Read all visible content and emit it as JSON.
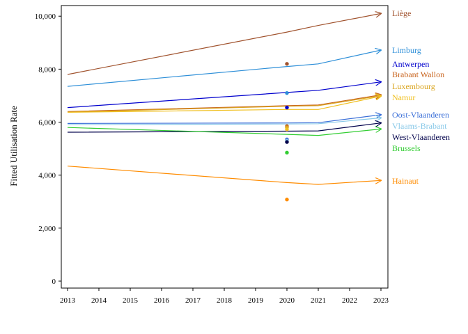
{
  "chart_data": {
    "type": "line",
    "title": "",
    "xlabel": "",
    "ylabel": "Fitted Utilisation Rate",
    "xlim": [
      2013,
      2023
    ],
    "ylim": [
      0,
      10400
    ],
    "x_ticks": [
      "2013",
      "2014",
      "2015",
      "2016",
      "2017",
      "2018",
      "2019",
      "2020",
      "2021",
      "2022",
      "2023"
    ],
    "y_ticks": [
      {
        "value": 0,
        "label": "0"
      },
      {
        "value": 2000,
        "label": "2,000"
      },
      {
        "value": 4000,
        "label": "4,000"
      },
      {
        "value": 6000,
        "label": "6,000"
      },
      {
        "value": 8000,
        "label": "8,000"
      },
      {
        "value": 10000,
        "label": "10,000"
      }
    ],
    "grid": false,
    "legend": "right, end-of-line labels",
    "x": [
      2013,
      2020,
      2021,
      2023
    ],
    "series": [
      {
        "name": "Liège",
        "color": "#a0522d",
        "values": [
          7800,
          9400,
          9650,
          10100
        ],
        "observed_2020": 8200
      },
      {
        "name": "Limburg",
        "color": "#2e8fd8",
        "values": [
          7350,
          8100,
          8200,
          8720
        ],
        "observed_2020": 7100
      },
      {
        "name": "Antwerpen",
        "color": "#0000cd",
        "values": [
          6550,
          7120,
          7200,
          7520
        ],
        "observed_2020": 6550
      },
      {
        "name": "Brabant Wallon",
        "color": "#c8641e",
        "values": [
          6400,
          6620,
          6650,
          7030
        ],
        "observed_2020": 5850
      },
      {
        "name": "Luxembourg",
        "color": "#daa520",
        "values": [
          6380,
          6600,
          6620,
          7000
        ],
        "observed_2020": 5800
      },
      {
        "name": "Namur",
        "color": "#f0c020",
        "values": [
          6370,
          6480,
          6480,
          6980
        ],
        "observed_2020": 5730
      },
      {
        "name": "Oost-Vlaanderen",
        "color": "#3a6fd8",
        "values": [
          5950,
          5970,
          5980,
          6280
        ],
        "observed_2020": 5350
      },
      {
        "name": "Vlaams-Brabant",
        "color": "#87c8e8",
        "values": [
          5900,
          5930,
          5940,
          6160
        ],
        "observed_2020": 5300
      },
      {
        "name": "West-Vlaanderen",
        "color": "#00004a",
        "values": [
          5620,
          5660,
          5670,
          5970
        ],
        "observed_2020": 5250
      },
      {
        "name": "Brussels",
        "color": "#32cd32",
        "values": [
          5800,
          5540,
          5500,
          5740
        ],
        "observed_2020": 4850
      },
      {
        "name": "Hainaut",
        "color": "#ff8c00",
        "values": [
          4340,
          3720,
          3650,
          3800
        ],
        "observed_2020": 3080
      }
    ],
    "observed_x": 2020
  }
}
